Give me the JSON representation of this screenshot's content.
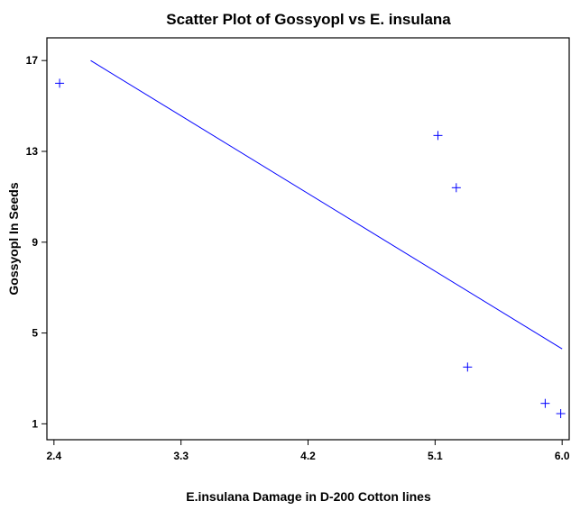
{
  "chart_data": {
    "type": "scatter",
    "title": "Scatter Plot of Gossyopl vs E. insulana",
    "xlabel": "E.insulana Damage in D-200 Cotton lines",
    "ylabel": "Gossyopl In Seeds",
    "xlim": [
      2.35,
      6.05
    ],
    "ylim": [
      0.3,
      18.0
    ],
    "x_ticks": [
      2.4,
      3.3,
      4.2,
      5.1,
      6.0
    ],
    "x_tick_labels": [
      "2.4",
      "3.3",
      "4.2",
      "5.1",
      "6.0"
    ],
    "y_ticks": [
      1,
      5,
      9,
      13,
      17
    ],
    "y_tick_labels": [
      "1",
      "5",
      "9",
      "13",
      "17"
    ],
    "grid": false,
    "series": [
      {
        "values": [
          {
            "x": 2.44,
            "y": 16.0
          },
          {
            "x": 5.12,
            "y": 13.7
          },
          {
            "x": 5.25,
            "y": 11.4
          },
          {
            "x": 5.33,
            "y": 3.5
          },
          {
            "x": 5.88,
            "y": 1.9
          },
          {
            "x": 5.99,
            "y": 1.45
          }
        ],
        "color": "#0000ff",
        "marker": "plus"
      }
    ],
    "fit_line": {
      "x": [
        2.66,
        6.0
      ],
      "y": [
        17.0,
        4.3
      ],
      "color": "#0000ff"
    }
  }
}
